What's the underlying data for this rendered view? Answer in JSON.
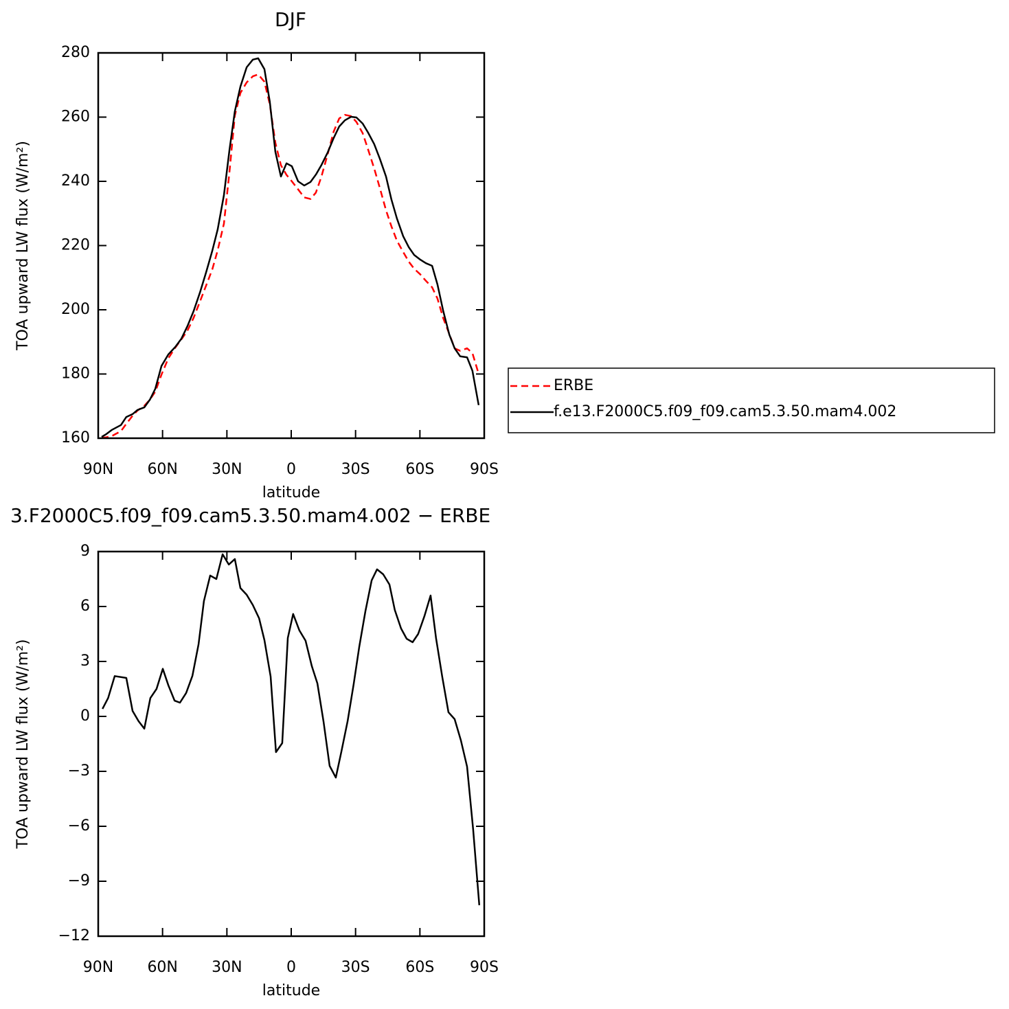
{
  "chart_data": [
    {
      "type": "line",
      "title": "DJF",
      "xlabel": "latitude",
      "ylabel": "TOA upward LW flux (W/m²)",
      "x": [
        88.4,
        86.2,
        83.6,
        79.4,
        76.9,
        74,
        71.7,
        68.5,
        65.9,
        63.4,
        60.5,
        57.3,
        54.1,
        51.2,
        48.4,
        45.5,
        42.6,
        39.7,
        36.8,
        34.3,
        31.4,
        28.8,
        26.3,
        23.7,
        20.8,
        17.9,
        15.4,
        12.5,
        10,
        7.4,
        4.8,
        2.2,
        -0.3,
        -3.2,
        -6.1,
        -9,
        -11.5,
        -14.1,
        -17,
        -19.8,
        -22.4,
        -25,
        -27.9,
        -30.4,
        -33.3,
        -35.8,
        -38.7,
        -41.3,
        -44.2,
        -46.7,
        -49.3,
        -52.2,
        -54.8,
        -57.3,
        -60.2,
        -62.8,
        -65.7,
        -68.2,
        -70.8,
        -73.7,
        -76.2,
        -78.8,
        -82,
        -84.5,
        -87.4
      ],
      "series": [
        {
          "name": "ERBE",
          "color": "#ff0000",
          "style": "dashed",
          "values": [
            160.1,
            160.3,
            160.7,
            162.2,
            164.5,
            167,
            168.6,
            170.1,
            172,
            174.5,
            179.8,
            184.9,
            188.2,
            190.8,
            193.5,
            197.5,
            202.5,
            207.5,
            212.6,
            218.5,
            226.8,
            243,
            260.5,
            267.5,
            270.8,
            272.7,
            273.3,
            271,
            264,
            252,
            245,
            242,
            240,
            237.5,
            235,
            234.5,
            236.5,
            241.5,
            248.5,
            255.5,
            259.6,
            260.7,
            260.3,
            258.5,
            255,
            250,
            244,
            238,
            231,
            226,
            221.5,
            218,
            215,
            212.8,
            211,
            209,
            207,
            203.5,
            197.5,
            192.5,
            188,
            187.2,
            188,
            186.5,
            180
          ]
        },
        {
          "name": "f.e13.F2000C5.f09_f09.cam5.3.50.mam4.002",
          "color": "#000000",
          "style": "solid",
          "values": [
            160.4,
            161.3,
            162.6,
            164.1,
            166.6,
            167.5,
            168.8,
            169.6,
            172,
            175.4,
            182.5,
            186.1,
            188.4,
            191,
            194.9,
            199.6,
            205.3,
            211.6,
            218.4,
            225,
            235.7,
            249.8,
            261.8,
            269.5,
            275.5,
            277.9,
            278.3,
            274.9,
            264.8,
            249.2,
            241.5,
            245.6,
            244.7,
            240,
            238.7,
            239.8,
            242.1,
            245.1,
            249,
            253.5,
            257.1,
            259,
            260.1,
            259.9,
            258,
            255.2,
            251.6,
            247.1,
            241.5,
            234.4,
            228.4,
            222.9,
            219.5,
            217.1,
            215.6,
            214.5,
            213.7,
            207.9,
            199.8,
            192.3,
            188,
            185.5,
            185.2,
            181,
            170.3
          ]
        }
      ],
      "xlim": [
        90,
        -90
      ],
      "xticks": [
        {
          "value": 90,
          "label": "90N"
        },
        {
          "value": 60,
          "label": "60N"
        },
        {
          "value": 30,
          "label": "30N"
        },
        0,
        {
          "value": -30,
          "label": "30S"
        },
        {
          "value": -60,
          "label": "60S"
        },
        {
          "value": -90,
          "label": "90S"
        }
      ],
      "ylim": [
        160,
        280
      ],
      "yticks": [
        160,
        180,
        200,
        220,
        240,
        260,
        280
      ],
      "legend": "outside-right"
    },
    {
      "type": "line",
      "title": "3.F2000C5.f09_f09.cam5.3.50.mam4.002 − ERBE",
      "xlabel": "latitude",
      "ylabel": "TOA upward LW flux (W/m²)",
      "x": [
        88,
        85.4,
        82.3,
        76.9,
        74,
        71.2,
        68.5,
        65.7,
        62.8,
        59.9,
        57.3,
        54.4,
        51.9,
        49,
        46.1,
        43.2,
        40.7,
        37.8,
        34.9,
        32,
        29.1,
        26.3,
        23.7,
        20.8,
        17.9,
        15,
        12.5,
        9.6,
        7.1,
        4.2,
        1.6,
        -0.9,
        -3.8,
        -6.7,
        -9.6,
        -12.2,
        -15.1,
        -17.9,
        -20.8,
        -23.4,
        -26.3,
        -29.1,
        -31.7,
        -34.6,
        -37.5,
        -40,
        -42.9,
        -45.8,
        -48.3,
        -51.2,
        -53.8,
        -56.6,
        -59.2,
        -62.1,
        -65,
        -67.5,
        -70.4,
        -73.3,
        -76.2,
        -79.1,
        -82,
        -84.8,
        -87.7
      ],
      "values": [
        0.41,
        1.0,
        2.2,
        2.1,
        0.3,
        -0.26,
        -0.67,
        1.0,
        1.5,
        2.6,
        1.7,
        0.86,
        0.75,
        1.28,
        2.21,
        3.94,
        6.3,
        7.69,
        7.5,
        8.85,
        8.29,
        8.59,
        7.01,
        6.64,
        6.08,
        5.36,
        4.16,
        2.18,
        -1.95,
        -1.46,
        4.28,
        5.59,
        4.69,
        4.13,
        2.74,
        1.8,
        -0.3,
        -2.7,
        -3.34,
        -1.91,
        -0.26,
        1.76,
        3.79,
        5.74,
        7.43,
        8.03,
        7.76,
        7.2,
        5.81,
        4.8,
        4.24,
        4.05,
        4.5,
        5.47,
        6.6,
        4.28,
        2.18,
        0.23,
        -0.15,
        -1.31,
        -2.74,
        -6.15,
        -10.31
      ],
      "color": "#000000",
      "xlim": [
        90,
        -90
      ],
      "xticks": [
        {
          "value": 90,
          "label": "90N"
        },
        {
          "value": 60,
          "label": "60N"
        },
        {
          "value": 30,
          "label": "30N"
        },
        0,
        {
          "value": -30,
          "label": "30S"
        },
        {
          "value": -60,
          "label": "60S"
        },
        {
          "value": -90,
          "label": "90S"
        }
      ],
      "ylim": [
        -12,
        9
      ],
      "yticks": [
        {
          "value": -12,
          "label": "−12"
        },
        {
          "value": -9,
          "label": "−9"
        },
        {
          "value": -6,
          "label": "−6"
        },
        {
          "value": -3,
          "label": "−3"
        },
        0,
        3,
        6,
        9
      ]
    }
  ]
}
